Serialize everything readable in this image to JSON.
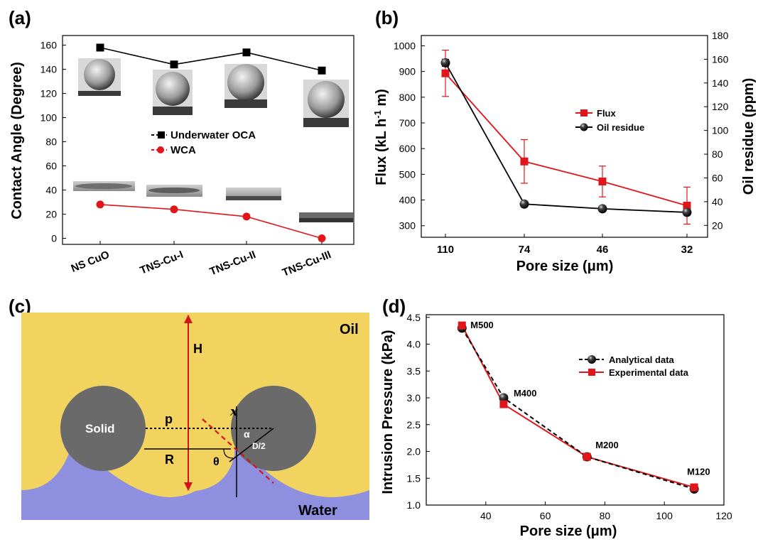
{
  "panel_labels": {
    "a": "(a)",
    "b": "(b)",
    "c": "(c)",
    "d": "(d)"
  },
  "colors": {
    "black": "#000000",
    "red": "#e0161b",
    "oil": "#f3d35f",
    "water": "#8f8fe0",
    "solid": "#6a6a6a"
  },
  "chart_data": [
    {
      "panel": "a",
      "type": "line",
      "categories": [
        "NS CuO",
        "TNS-Cu-I",
        "TNS-Cu-II",
        "TNS-Cu-III"
      ],
      "ylabel": "Contact Angle (Degree)",
      "ylim": [
        -5,
        168
      ],
      "yticks": [
        0,
        20,
        40,
        60,
        80,
        100,
        120,
        140,
        160
      ],
      "series": [
        {
          "name": "Underwater OCA",
          "color": "#000000",
          "marker": "square",
          "values": [
            158,
            144,
            154,
            139
          ]
        },
        {
          "name": "WCA",
          "color": "#e0161b",
          "marker": "circle",
          "values": [
            28,
            24,
            18,
            0
          ]
        }
      ],
      "legend_position": "center-right",
      "insets": "droplet photographs above each point"
    },
    {
      "panel": "b",
      "type": "line",
      "categories": [
        "110",
        "74",
        "46",
        "32"
      ],
      "xlabel": "Pore size (μm)",
      "ylabel_left": "Flux (kL h-1 m)",
      "ylabel_right": "Oil residue (ppm)",
      "ylim_left": [
        255,
        1040
      ],
      "ylim_right": [
        10,
        180
      ],
      "yticks_left": [
        300,
        400,
        500,
        600,
        700,
        800,
        900,
        1000
      ],
      "yticks_right": [
        20,
        40,
        60,
        80,
        100,
        120,
        140,
        160,
        180
      ],
      "series": [
        {
          "name": "Flux",
          "axis": "left",
          "color": "#e0161b",
          "marker": "square",
          "values": [
            893,
            550,
            472,
            378
          ],
          "errors": [
            90,
            85,
            60,
            72
          ]
        },
        {
          "name": "Oil residue",
          "axis": "right",
          "color": "#000000",
          "marker": "sphere",
          "values": [
            157,
            38,
            34,
            31
          ],
          "errors": [
            3,
            2,
            2,
            2
          ]
        }
      ],
      "legend_position": "center-right"
    },
    {
      "panel": "d",
      "type": "line",
      "xlabel": "Pore size (μm)",
      "ylabel": "Intrusion Pressure (kPa)",
      "xlim": [
        20,
        120
      ],
      "ylim": [
        1.0,
        4.55
      ],
      "xticks": [
        40,
        60,
        80,
        100,
        120
      ],
      "yticks": [
        1.0,
        1.5,
        2.0,
        2.5,
        3.0,
        3.5,
        4.0,
        4.5
      ],
      "x": [
        32,
        46,
        74,
        110
      ],
      "point_labels": [
        "M500",
        "M400",
        "M200",
        "M120"
      ],
      "series": [
        {
          "name": "Analytical data",
          "color": "#000000",
          "marker": "sphere",
          "line": "dashed",
          "values": [
            4.3,
            3.0,
            1.9,
            1.3
          ]
        },
        {
          "name": "Experimental data",
          "color": "#e0161b",
          "marker": "square",
          "line": "solid",
          "values": [
            4.35,
            2.88,
            1.9,
            1.33
          ]
        }
      ],
      "legend_position": "top-right"
    }
  ],
  "diagram": {
    "oil_label": "Oil",
    "water_label": "Water",
    "solid_label": "Solid",
    "H": "H",
    "p": "p",
    "R": "R",
    "theta": "θ",
    "alpha": "α",
    "d_half": "D/2",
    "x": "x"
  }
}
